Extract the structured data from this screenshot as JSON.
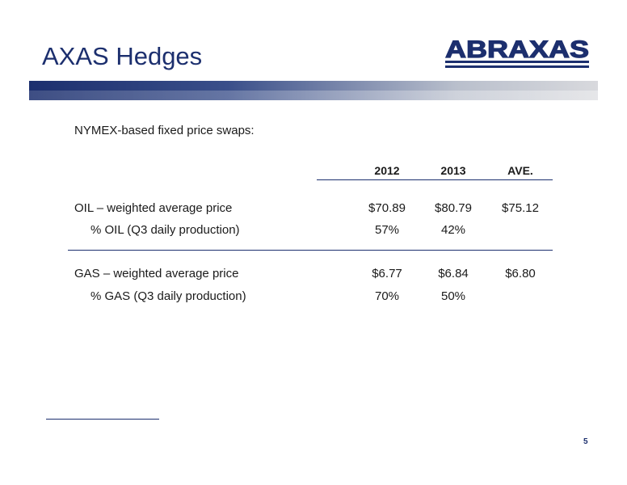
{
  "slide": {
    "title": "AXAS Hedges",
    "logo_text": "ABRAXAS",
    "subtitle": "NYMEX-based fixed price swaps:",
    "page_number": "5"
  },
  "table": {
    "columns": [
      "2012",
      "2013",
      "AVE."
    ],
    "rows": [
      {
        "label": "OIL – weighted average price",
        "values": [
          "$70.89",
          "$80.79",
          "$75.12"
        ]
      },
      {
        "label": "% OIL (Q3 daily production)",
        "values": [
          "57%",
          "42%",
          ""
        ]
      },
      {
        "label": "GAS – weighted average price",
        "values": [
          "$6.77",
          "$6.84",
          "$6.80"
        ]
      },
      {
        "label": "% GAS (Q3 daily production)",
        "values": [
          "70%",
          "50%",
          ""
        ]
      }
    ]
  },
  "colors": {
    "brand_navy": "#1c2f6e"
  }
}
